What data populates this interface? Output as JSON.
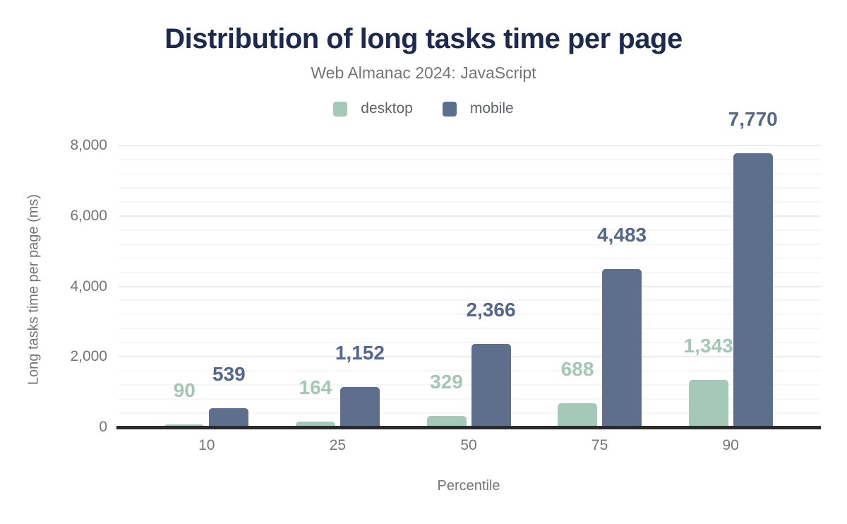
{
  "title": "Distribution of long tasks time per page",
  "subtitle": "Web Almanac 2024: JavaScript",
  "theme": {
    "background": "#ffffff",
    "title_color": "#1b2a4e",
    "subtitle_color": "#757575",
    "tick_text_color": "#757575",
    "axis_title_color": "#757575",
    "legend_text_color": "#5f6368",
    "axis_line_color": "#2b2b2b",
    "grid_minor_color": "#f6f6f6",
    "grid_major_color": "#ececec"
  },
  "chart_data": {
    "type": "bar",
    "title": "Distribution of long tasks time per page",
    "subtitle": "Web Almanac 2024: JavaScript",
    "categories": [
      "10",
      "25",
      "50",
      "75",
      "90"
    ],
    "series": [
      {
        "name": "desktop",
        "color": "#a5c9b8",
        "label_color": "#a2c8b5",
        "values": [
          90,
          164,
          329,
          688,
          1343
        ],
        "labels": [
          "90",
          "164",
          "329",
          "688",
          "1,343"
        ]
      },
      {
        "name": "mobile",
        "color": "#5e6f8d",
        "label_color": "#54678c",
        "values": [
          539,
          1152,
          2366,
          4483,
          7770
        ],
        "labels": [
          "539",
          "1,152",
          "2,366",
          "4,483",
          "7,770"
        ]
      }
    ],
    "xlabel": "Percentile",
    "ylabel": "Long tasks time per page (ms)",
    "ylim": [
      0,
      8000
    ],
    "yticks": [
      {
        "value": 0,
        "label": "0"
      },
      {
        "value": 2000,
        "label": "2,000"
      },
      {
        "value": 4000,
        "label": "4,000"
      },
      {
        "value": 6000,
        "label": "6,000"
      },
      {
        "value": 8000,
        "label": "8,000"
      }
    ],
    "grid": {
      "orientation": "horizontal",
      "minor_step": 400,
      "major_step": 2000
    },
    "legend_position": "top",
    "data_labels_shown": true
  }
}
